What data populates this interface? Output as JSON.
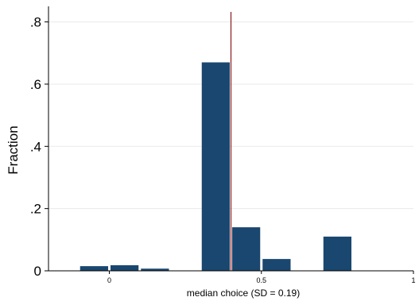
{
  "chart_data": {
    "type": "bar",
    "xlabel": "median choice (SD = 0.19)",
    "ylabel": "Fraction",
    "ylim": [
      0,
      0.85
    ],
    "xlim": [
      -0.2,
      1.0
    ],
    "bin_width": 0.1,
    "y_ticks": [
      {
        "value": 0,
        "label": "0"
      },
      {
        "value": 0.2,
        "label": ".2"
      },
      {
        "value": 0.4,
        "label": ".4"
      },
      {
        "value": 0.6,
        "label": ".6"
      },
      {
        "value": 0.8,
        "label": ".8"
      }
    ],
    "x_ticks": [
      {
        "value": 0,
        "label": "0"
      },
      {
        "value": 0.5,
        "label": "0.5"
      },
      {
        "value": 1,
        "label": "1"
      }
    ],
    "bins": [
      {
        "x": -0.05,
        "value": 0.015
      },
      {
        "x": 0.05,
        "value": 0.018
      },
      {
        "x": 0.15,
        "value": 0.007
      },
      {
        "x": 0.35,
        "value": 0.67
      },
      {
        "x": 0.45,
        "value": 0.14
      },
      {
        "x": 0.55,
        "value": 0.038
      },
      {
        "x": 0.75,
        "value": 0.11
      }
    ],
    "reference_line": {
      "x": 0.4,
      "color": "#8b1a1a"
    },
    "bar_color": "#1a476f",
    "grid": true,
    "legend": false
  }
}
